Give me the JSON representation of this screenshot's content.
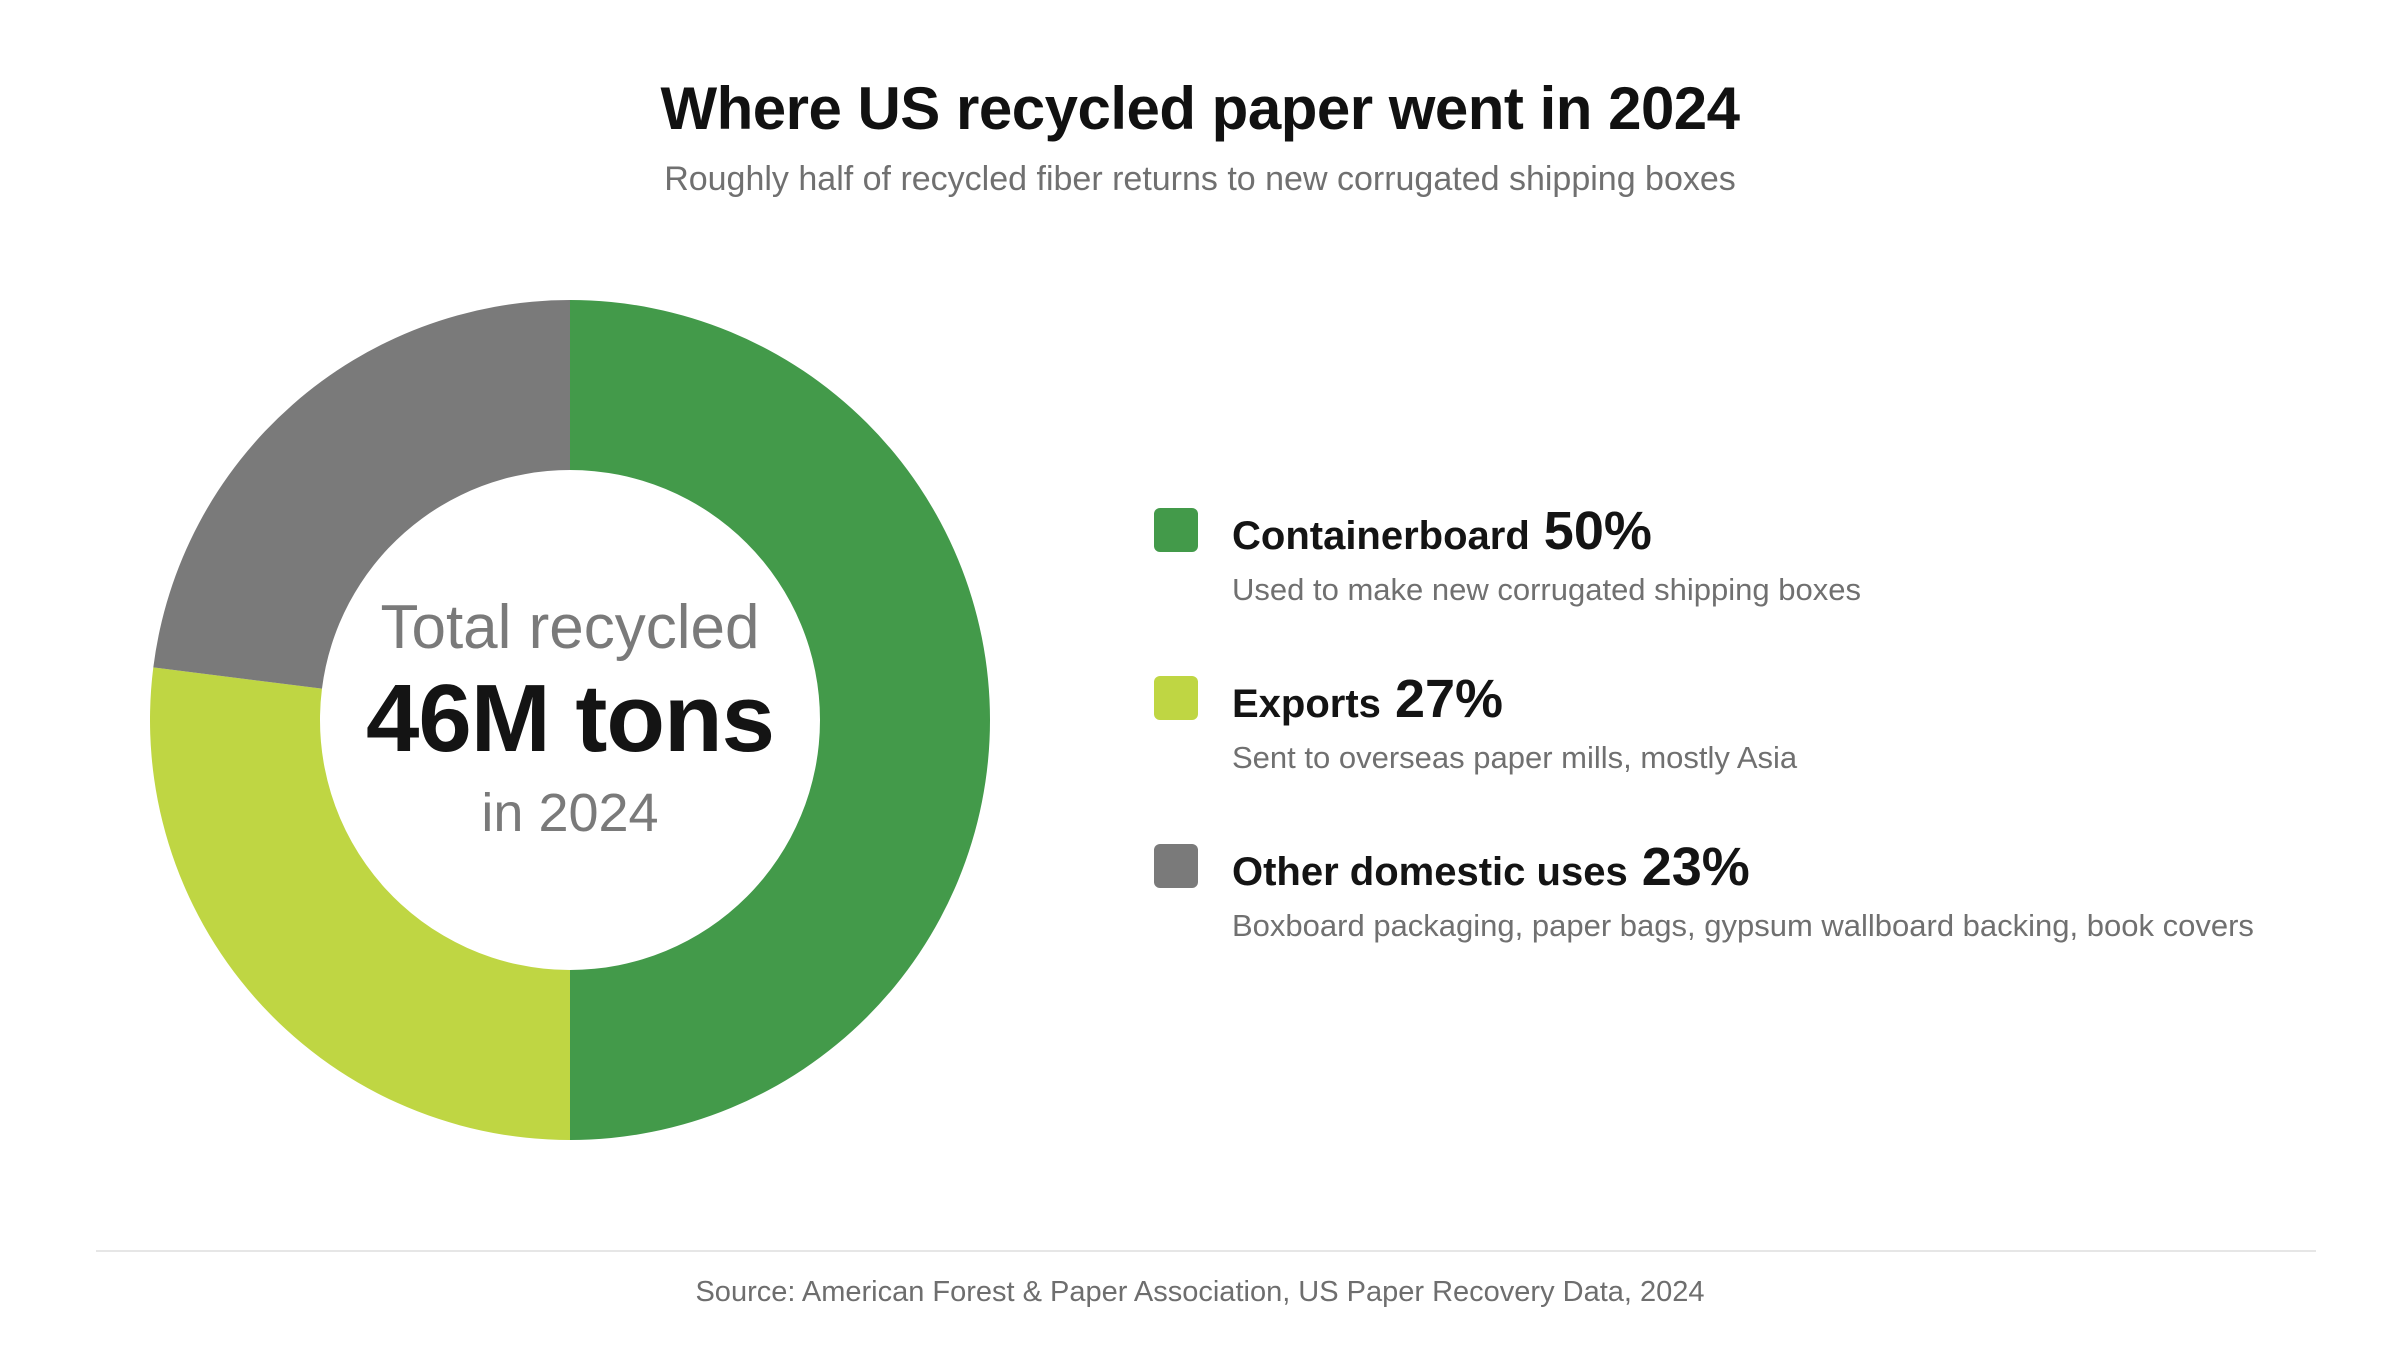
{
  "title": "Where US recycled paper went in 2024",
  "subtitle": "Roughly half of recycled fiber returns to new corrugated shipping boxes",
  "center": {
    "top": "Total recycled",
    "main": "46M tons",
    "bottom": "in 2024"
  },
  "legend": [
    {
      "name": "Containerboard",
      "pct": "50%",
      "desc": "Used to make new corrugated shipping boxes",
      "color": "#439A4A"
    },
    {
      "name": "Exports",
      "pct": "27%",
      "desc": "Sent to overseas paper mills, mostly Asia",
      "color": "#BFD643"
    },
    {
      "name": "Other domestic uses",
      "pct": "23%",
      "desc": "Boxboard packaging, paper bags, gypsum wallboard backing, book covers",
      "color": "#7A7A7A"
    }
  ],
  "source": "Source: American Forest & Paper Association, US Paper Recovery Data, 2024",
  "chart_data": {
    "type": "pie",
    "donut": true,
    "title": "Where US recycled paper went in 2024",
    "subtitle": "Roughly half of recycled fiber returns to new corrugated shipping boxes",
    "categories": [
      "Containerboard",
      "Exports",
      "Other domestic uses"
    ],
    "values": [
      50,
      27,
      23
    ],
    "unit": "%",
    "colors": [
      "#439A4A",
      "#BFD643",
      "#7A7A7A"
    ],
    "start": "top",
    "direction": "clockwise",
    "legend_position": "right"
  }
}
